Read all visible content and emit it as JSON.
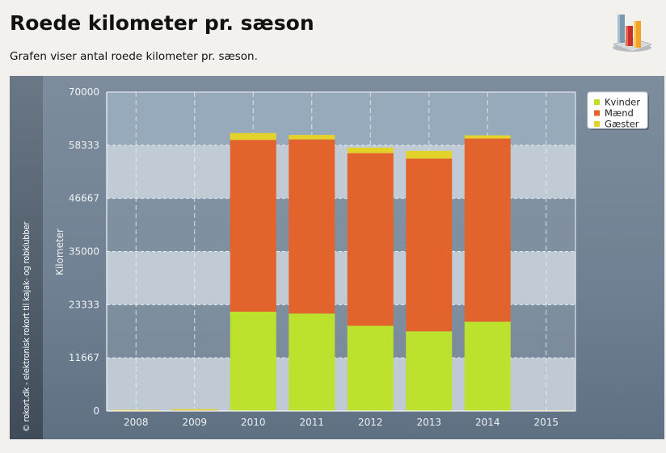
{
  "header": {
    "title": "Roede kilometer pr. sæson",
    "description": "Grafen viser antal roede kilometer pr. sæson."
  },
  "credit": "© rokort.dk - elektronisk rokort til kajak- og robklubber",
  "icon": "bar-chart-icon",
  "colors": {
    "kvinder": "#bde22d",
    "maend": "#e2632c",
    "gaester": "#e3d22a"
  },
  "chart_data": {
    "type": "bar",
    "stacked": true,
    "categories": [
      "2008",
      "2009",
      "2010",
      "2011",
      "2012",
      "2013",
      "2014",
      "2015"
    ],
    "series": [
      {
        "name": "Kvinder",
        "values": [
          0,
          0,
          21800,
          21400,
          18700,
          17500,
          19600,
          0
        ]
      },
      {
        "name": "Mænd",
        "values": [
          100,
          150,
          37700,
          38200,
          37900,
          37900,
          40200,
          0
        ]
      },
      {
        "name": "Gæster",
        "values": [
          150,
          250,
          1500,
          1000,
          1200,
          1700,
          700,
          150
        ]
      }
    ],
    "ylabel": "Kilometer",
    "xlabel": "",
    "ylim": [
      0,
      70000
    ],
    "yticks": [
      "0",
      "11667",
      "23333",
      "35000",
      "46667",
      "58333",
      "70000"
    ],
    "grid": true,
    "legend_position": "top-right"
  }
}
